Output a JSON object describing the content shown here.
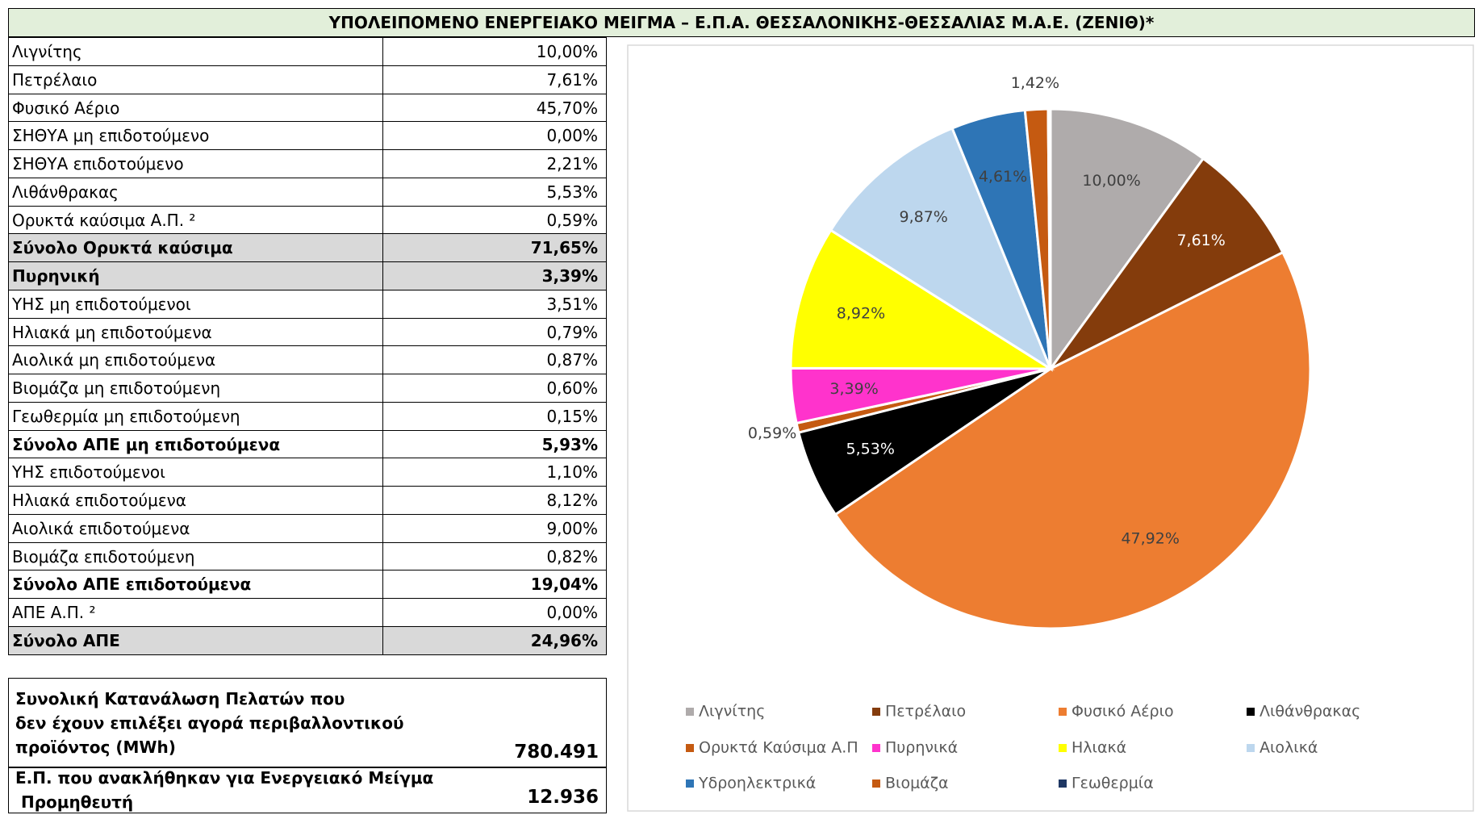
{
  "header": {
    "title": "ΥΠΟΛΕΙΠΟΜΕΝΟ ΕΝΕΡΓΕΙΑΚΟ ΜΕΙΓΜΑ – Ε.Π.Α. ΘΕΣΣΑΛΟΝΙΚΗΣ-ΘΕΣΣΑΛΙΑΣ Μ.Α.Ε. (ΖΕΝΙΘ)*"
  },
  "table": {
    "rows": [
      {
        "label": "Λιγνίτης",
        "value": "10,00%"
      },
      {
        "label": "Πετρέλαιο",
        "value": "7,61%"
      },
      {
        "label": "Φυσικό Αέριο",
        "value": "45,70%"
      },
      {
        "label": "ΣΗΘΥΑ μη επιδοτούμενο",
        "value": "0,00%"
      },
      {
        "label": "ΣΗΘΥΑ επιδοτούμενο",
        "value": "2,21%"
      },
      {
        "label": "Λιθάνθρακας",
        "value": "5,53%"
      },
      {
        "label": "Ορυκτά καύσιμα Α.Π. ²",
        "value": "0,59%"
      },
      {
        "label": "Σύνολο Ορυκτά καύσιμα",
        "value": "71,65%",
        "bold": true,
        "shaded": true
      },
      {
        "label": "Πυρηνική",
        "value": "3,39%",
        "bold": true,
        "shaded": true
      },
      {
        "label": "ΥΗΣ μη επιδοτούμενοι",
        "value": "3,51%"
      },
      {
        "label": "Ηλιακά μη επιδοτούμενα",
        "value": "0,79%"
      },
      {
        "label": "Αιολικά μη επιδοτούμενα",
        "value": "0,87%"
      },
      {
        "label": "Βιομάζα μη επιδοτούμενη",
        "value": "0,60%"
      },
      {
        "label": "Γεωθερμία μη επιδοτούμενη",
        "value": "0,15%"
      },
      {
        "label": "Σύνολο ΑΠΕ μη επιδοτούμενα",
        "value": "5,93%",
        "bold": true
      },
      {
        "label": "ΥΗΣ επιδοτούμενοι",
        "value": "1,10%"
      },
      {
        "label": "Ηλιακά επιδοτούμενα",
        "value": "8,12%"
      },
      {
        "label": "Αιολικά επιδοτούμενα",
        "value": "9,00%"
      },
      {
        "label": "Βιομάζα επιδοτούμενη",
        "value": "0,82%"
      },
      {
        "label": "Σύνολο ΑΠΕ επιδοτούμενα",
        "value": "19,04%",
        "bold": true
      },
      {
        "label": "ΑΠΕ Α.Π. ²",
        "value": "0,00%"
      },
      {
        "label": "Σύνολο ΑΠΕ",
        "value": "24,96%",
        "bold": true,
        "shaded": true
      }
    ]
  },
  "totals": [
    {
      "lines": [
        "Συνολική Κατανάλωση Πελατών που",
        "δεν έχουν επιλέξει αγορά περιβαλλοντικού",
        "προϊόντος (MWh)"
      ],
      "value": "780.491"
    },
    {
      "lines": [
        "Ε.Π. που ανακλήθηκαν για Ενεργειακό Μείγμα",
        " Προμηθευτή"
      ],
      "value": "12.936"
    }
  ],
  "chart_data": {
    "type": "pie",
    "categories": [
      "Λιγνίτης",
      "Πετρέλαιο",
      "Φυσικό Αέριο",
      "Λιθάνθρακας",
      "Ορυκτά Καύσιμα Α.Π",
      "Πυρηνικά",
      "Ηλιακά",
      "Αιολικά",
      "Υδροηλεκτρικά",
      "Βιομάζα",
      "Γεωθερμία"
    ],
    "values": [
      10.0,
      7.61,
      47.92,
      5.53,
      0.59,
      3.39,
      8.92,
      9.87,
      4.61,
      1.42,
      0.15
    ],
    "value_labels": [
      "10,00%",
      "7,61%",
      "47,92%",
      "5,53%",
      "0,59%",
      "3,39%",
      "8,92%",
      "9,87%",
      "4,61%",
      "1,42%",
      null
    ],
    "colors": [
      "#afabab",
      "#843c0c",
      "#ed7d31",
      "#000000",
      "#c55a11",
      "#ff33cc",
      "#ffff00",
      "#bdd7ee",
      "#2e75b6",
      "#c55a11",
      "#1f3864"
    ],
    "legend": "bottom"
  }
}
